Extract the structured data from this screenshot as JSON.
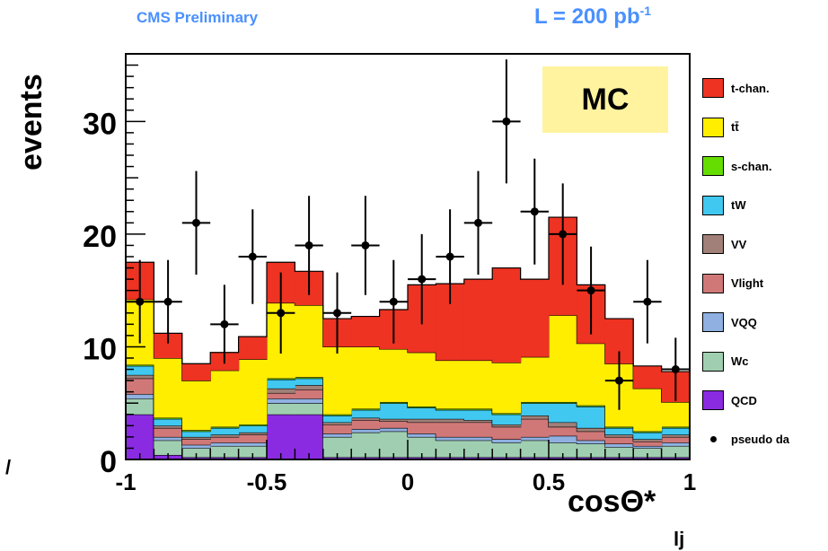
{
  "header": {
    "left_title": "CMS Preliminary",
    "right_title_base": "L = 200 pb",
    "right_title_sup": "-1",
    "mc_label": "MC",
    "edge_mark": "/"
  },
  "chart_data": {
    "type": "bar",
    "stacked": true,
    "title": "CMS Preliminary",
    "ylabel": "events",
    "xlabel": "cosΘ*",
    "xlabel_sub": "lj",
    "xlim": [
      -1,
      1
    ],
    "ylim": [
      0,
      36
    ],
    "xticks": [
      -1,
      -0.5,
      0,
      0.5,
      1
    ],
    "yticks": [
      0,
      10,
      20,
      30
    ],
    "bin_edges": [
      -1.0,
      -0.9,
      -0.8,
      -0.7,
      -0.6,
      -0.5,
      -0.4,
      -0.3,
      -0.2,
      -0.1,
      0.0,
      0.1,
      0.2,
      0.3,
      0.4,
      0.5,
      0.6,
      0.7,
      0.8,
      0.9,
      1.0
    ],
    "series": [
      {
        "name": "QCD",
        "color": "#8a2be2",
        "values": [
          4.0,
          0.4,
          0.2,
          0.2,
          0.2,
          4.0,
          4.0,
          0.2,
          0.2,
          0.2,
          0.2,
          0.2,
          0.2,
          0.2,
          0.2,
          0.2,
          0.2,
          0.2,
          0.2,
          0.2
        ]
      },
      {
        "name": "Wc",
        "color": "#9fcfb0",
        "values": [
          1.4,
          1.3,
          0.8,
          1.0,
          1.0,
          1.0,
          1.0,
          1.8,
          2.2,
          2.3,
          1.8,
          1.5,
          1.5,
          1.3,
          1.5,
          1.3,
          1.2,
          0.9,
          0.8,
          1.0
        ]
      },
      {
        "name": "VQQ",
        "color": "#8fb0e0",
        "values": [
          0.4,
          0.3,
          0.3,
          0.3,
          0.3,
          0.4,
          0.4,
          0.3,
          0.3,
          0.3,
          0.3,
          0.3,
          0.3,
          0.3,
          0.3,
          0.6,
          0.3,
          0.3,
          0.2,
          0.3
        ]
      },
      {
        "name": "Vlight",
        "color": "#d07878",
        "values": [
          1.4,
          0.8,
          0.5,
          0.5,
          0.7,
          0.5,
          0.8,
          0.8,
          0.8,
          0.6,
          1.0,
          1.3,
          1.3,
          1.1,
          1.6,
          0.8,
          0.8,
          0.6,
          0.4,
          0.5
        ]
      },
      {
        "name": "VV",
        "color": "#a08078",
        "values": [
          0.3,
          0.2,
          0.2,
          0.2,
          0.2,
          0.4,
          0.4,
          0.2,
          0.2,
          0.2,
          0.3,
          0.3,
          0.2,
          0.2,
          0.3,
          0.4,
          0.3,
          0.2,
          0.2,
          0.2
        ]
      },
      {
        "name": "tW",
        "color": "#40c8f0",
        "values": [
          0.8,
          0.6,
          0.5,
          0.6,
          0.6,
          0.8,
          0.6,
          0.6,
          0.7,
          1.4,
          1.0,
          0.8,
          0.9,
          0.9,
          1.1,
          1.7,
          1.9,
          0.6,
          0.6,
          0.6
        ]
      },
      {
        "name": "s-chan.",
        "color": "#66dd00",
        "values": [
          0.1,
          0.1,
          0.1,
          0.1,
          0.1,
          0.1,
          0.1,
          0.1,
          0.1,
          0.1,
          0.1,
          0.1,
          0.1,
          0.1,
          0.1,
          0.1,
          0.1,
          0.1,
          0.1,
          0.1
        ]
      },
      {
        "name": "tt̄",
        "color": "#ffee00",
        "values": [
          5.8,
          5.3,
          4.4,
          5.0,
          5.8,
          6.7,
          6.4,
          6.0,
          5.5,
          4.7,
          4.8,
          4.3,
          4.3,
          4.5,
          4.0,
          7.7,
          5.5,
          5.6,
          3.8,
          2.2
        ]
      },
      {
        "name": "t-chan.",
        "color": "#ee3322",
        "values": [
          3.3,
          2.2,
          1.5,
          1.6,
          2.0,
          3.6,
          3.0,
          2.5,
          2.7,
          3.5,
          6.0,
          6.8,
          7.2,
          8.4,
          6.9,
          8.7,
          5.2,
          4.0,
          2.0,
          2.7
        ]
      }
    ],
    "pseudo_data": {
      "name": "pseudo da",
      "x": [
        -0.95,
        -0.85,
        -0.75,
        -0.65,
        -0.55,
        -0.45,
        -0.35,
        -0.25,
        -0.15,
        -0.05,
        0.05,
        0.15,
        0.25,
        0.35,
        0.45,
        0.55,
        0.65,
        0.75,
        0.85,
        0.95
      ],
      "y": [
        14,
        14,
        21,
        12,
        18,
        13,
        19,
        13,
        19,
        14,
        16,
        18,
        21,
        30,
        22,
        20,
        15,
        7,
        14,
        8
      ],
      "yerr": [
        3.7,
        3.7,
        4.6,
        3.5,
        4.2,
        3.6,
        4.4,
        3.6,
        4.4,
        3.7,
        4.0,
        4.2,
        4.6,
        5.5,
        4.7,
        4.5,
        3.9,
        2.6,
        3.7,
        2.8
      ]
    }
  }
}
